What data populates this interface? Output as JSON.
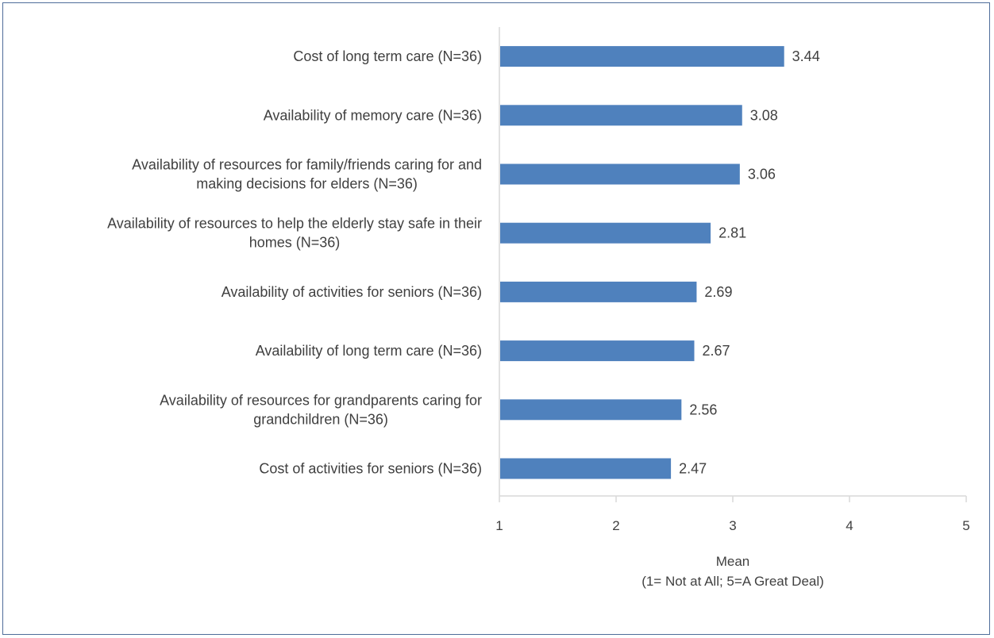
{
  "chart_data": {
    "type": "bar",
    "orientation": "horizontal",
    "title": "",
    "categories": [
      [
        "Cost of long term care (N=36)"
      ],
      [
        "Availability of memory care (N=36)"
      ],
      [
        "Availability of resources for family/friends caring for and",
        "making decisions for elders (N=36)"
      ],
      [
        "Availability of resources to help the elderly stay safe in their",
        "homes (N=36)"
      ],
      [
        "Availability of activities for seniors (N=36)"
      ],
      [
        "Availability of long term care (N=36)"
      ],
      [
        "Availability of resources for grandparents caring for",
        "grandchildren (N=36)"
      ],
      [
        "Cost of activities for seniors (N=36)"
      ]
    ],
    "values": [
      3.44,
      3.08,
      3.06,
      2.81,
      2.69,
      2.67,
      2.56,
      2.47
    ],
    "value_labels": [
      "3.44",
      "3.08",
      "3.06",
      "2.81",
      "2.69",
      "2.67",
      "2.56",
      "2.47"
    ],
    "xlim": [
      1,
      5
    ],
    "xticks": [
      "1",
      "2",
      "3",
      "4",
      "5"
    ],
    "xlabel": [
      "Mean",
      "(1= Not at All; 5=A Great Deal)"
    ],
    "ylabel": "",
    "grid": false,
    "legend": "none",
    "bar_color": "#4f81bd",
    "axis_color": "#d9d9d9",
    "border_color": "#4f6d9a"
  }
}
